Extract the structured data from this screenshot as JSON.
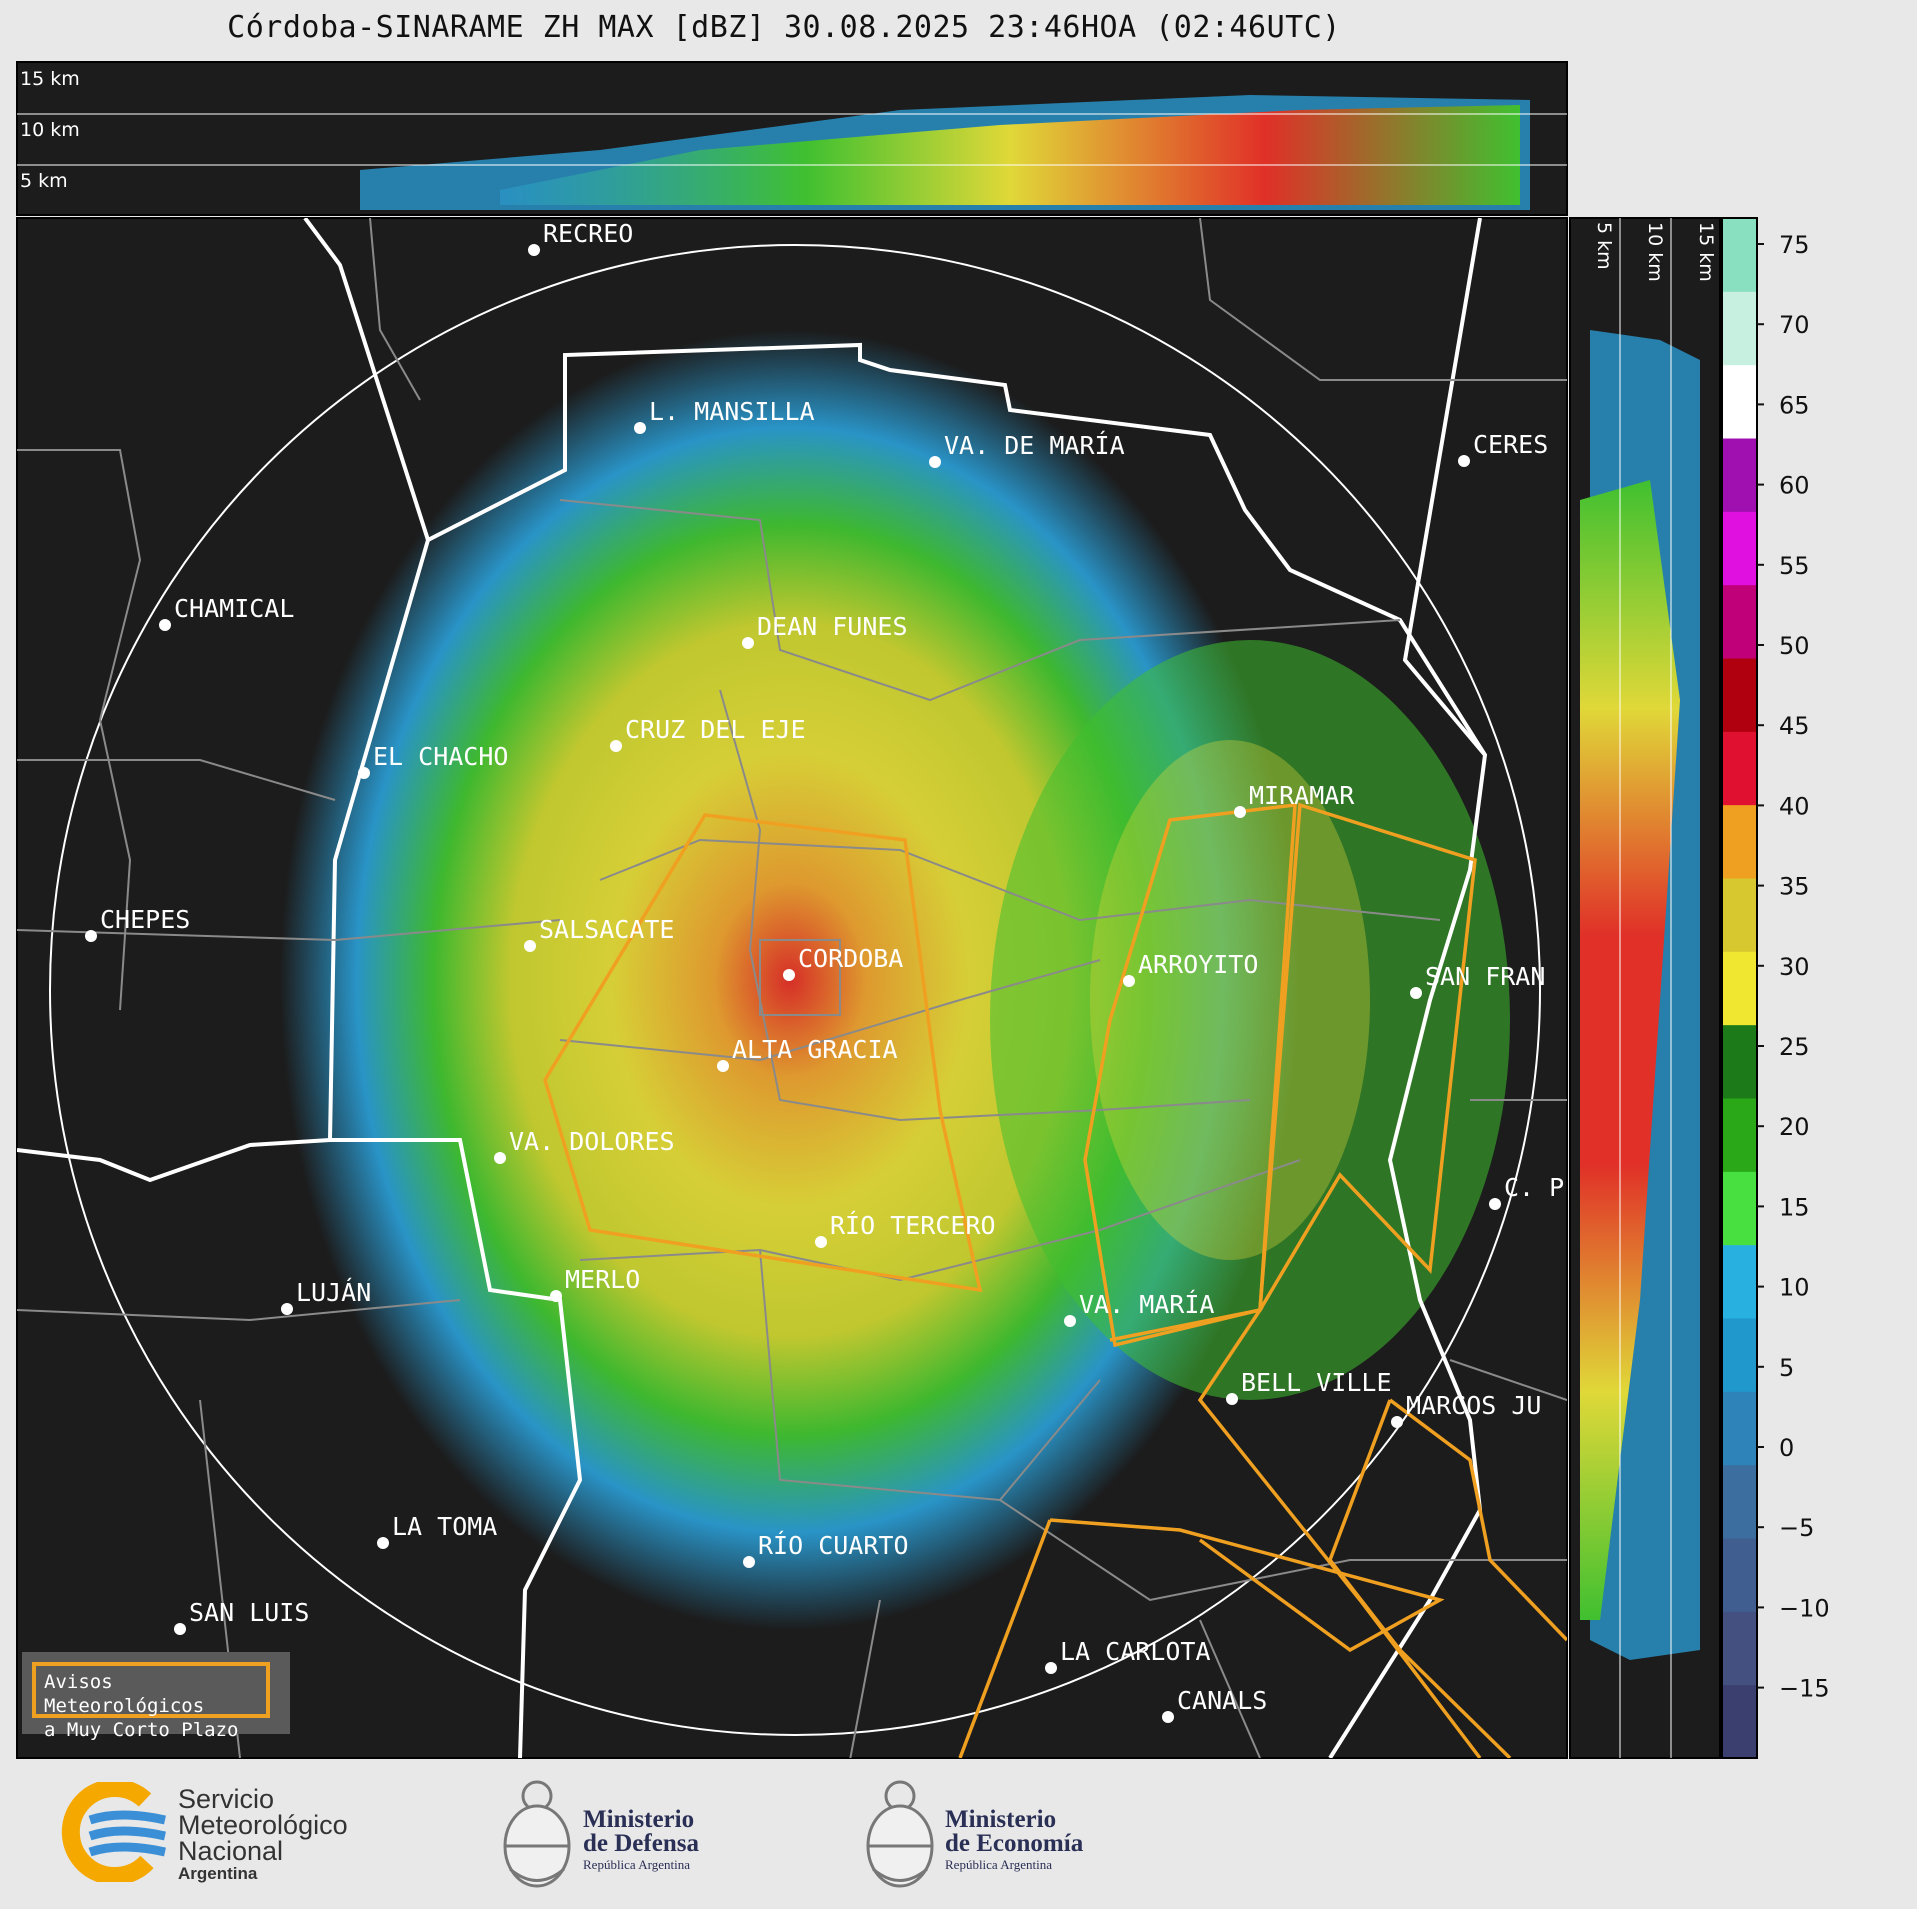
{
  "title": "Córdoba-SINARAME ZH MAX [dBZ] 30.08.2025 23:46HOA (02:46UTC)",
  "top_profile": {
    "labels": [
      "15 km",
      "10 km",
      "5 km"
    ]
  },
  "side_profile": {
    "labels": [
      "5 km",
      "10 km",
      "15 km"
    ]
  },
  "colorbar": {
    "ticks": [
      "75",
      "70",
      "65",
      "60",
      "55",
      "50",
      "45",
      "40",
      "35",
      "30",
      "25",
      "20",
      "15",
      "10",
      "5",
      "0",
      "−5",
      "−10",
      "−15"
    ],
    "unit": "dBZ",
    "colors": [
      "#3a3f70",
      "#44507f",
      "#405f90",
      "#3c6fa0",
      "#2e83b8",
      "#2098cc",
      "#28b0e0",
      "#48e040",
      "#2aa818",
      "#1c7a18",
      "#f0e830",
      "#d8c830",
      "#f0a020",
      "#e01030",
      "#b00010",
      "#c00078",
      "#e010e0",
      "#a010b0",
      "#ffffff",
      "#c8f0e0",
      "#88e0c0"
    ]
  },
  "cities": [
    {
      "name": "RECREO"
    },
    {
      "name": "L. MANSILLA"
    },
    {
      "name": "VA. DE MARÍA"
    },
    {
      "name": "CERES"
    },
    {
      "name": "CHAMICAL"
    },
    {
      "name": "DEAN FUNES"
    },
    {
      "name": "CRUZ DEL EJE"
    },
    {
      "name": "EL CHACHO"
    },
    {
      "name": "MIRAMAR"
    },
    {
      "name": "CHEPES"
    },
    {
      "name": "SALSACATE"
    },
    {
      "name": "CORDOBA"
    },
    {
      "name": "ARROYITO"
    },
    {
      "name": "SAN FRAN"
    },
    {
      "name": "ALTA GRACIA"
    },
    {
      "name": "VA. DOLORES"
    },
    {
      "name": "C. P"
    },
    {
      "name": "RÍO TERCERO"
    },
    {
      "name": "LUJÁN"
    },
    {
      "name": "MERLO"
    },
    {
      "name": "VA. MARÍA"
    },
    {
      "name": "BELL VILLE"
    },
    {
      "name": "MARCOS JU"
    },
    {
      "name": "LA TOMA"
    },
    {
      "name": "RÍO CUARTO"
    },
    {
      "name": "SAN LUIS"
    },
    {
      "name": "LA CARLOTA"
    },
    {
      "name": "CANALS"
    }
  ],
  "legend": {
    "line1": "Avisos Meteorológicos",
    "line2": "a Muy Corto Plazo",
    "color": "#f0a020"
  },
  "logos": {
    "smn": {
      "line1": "Servicio",
      "line2": "Meteorológico",
      "line3": "Nacional",
      "line4": "Argentina"
    },
    "defensa": {
      "line1": "Ministerio",
      "line2": "de Defensa",
      "line3": "República Argentina"
    },
    "economia": {
      "line1": "Ministerio",
      "line2": "de Economía",
      "line3": "República Argentina"
    }
  }
}
